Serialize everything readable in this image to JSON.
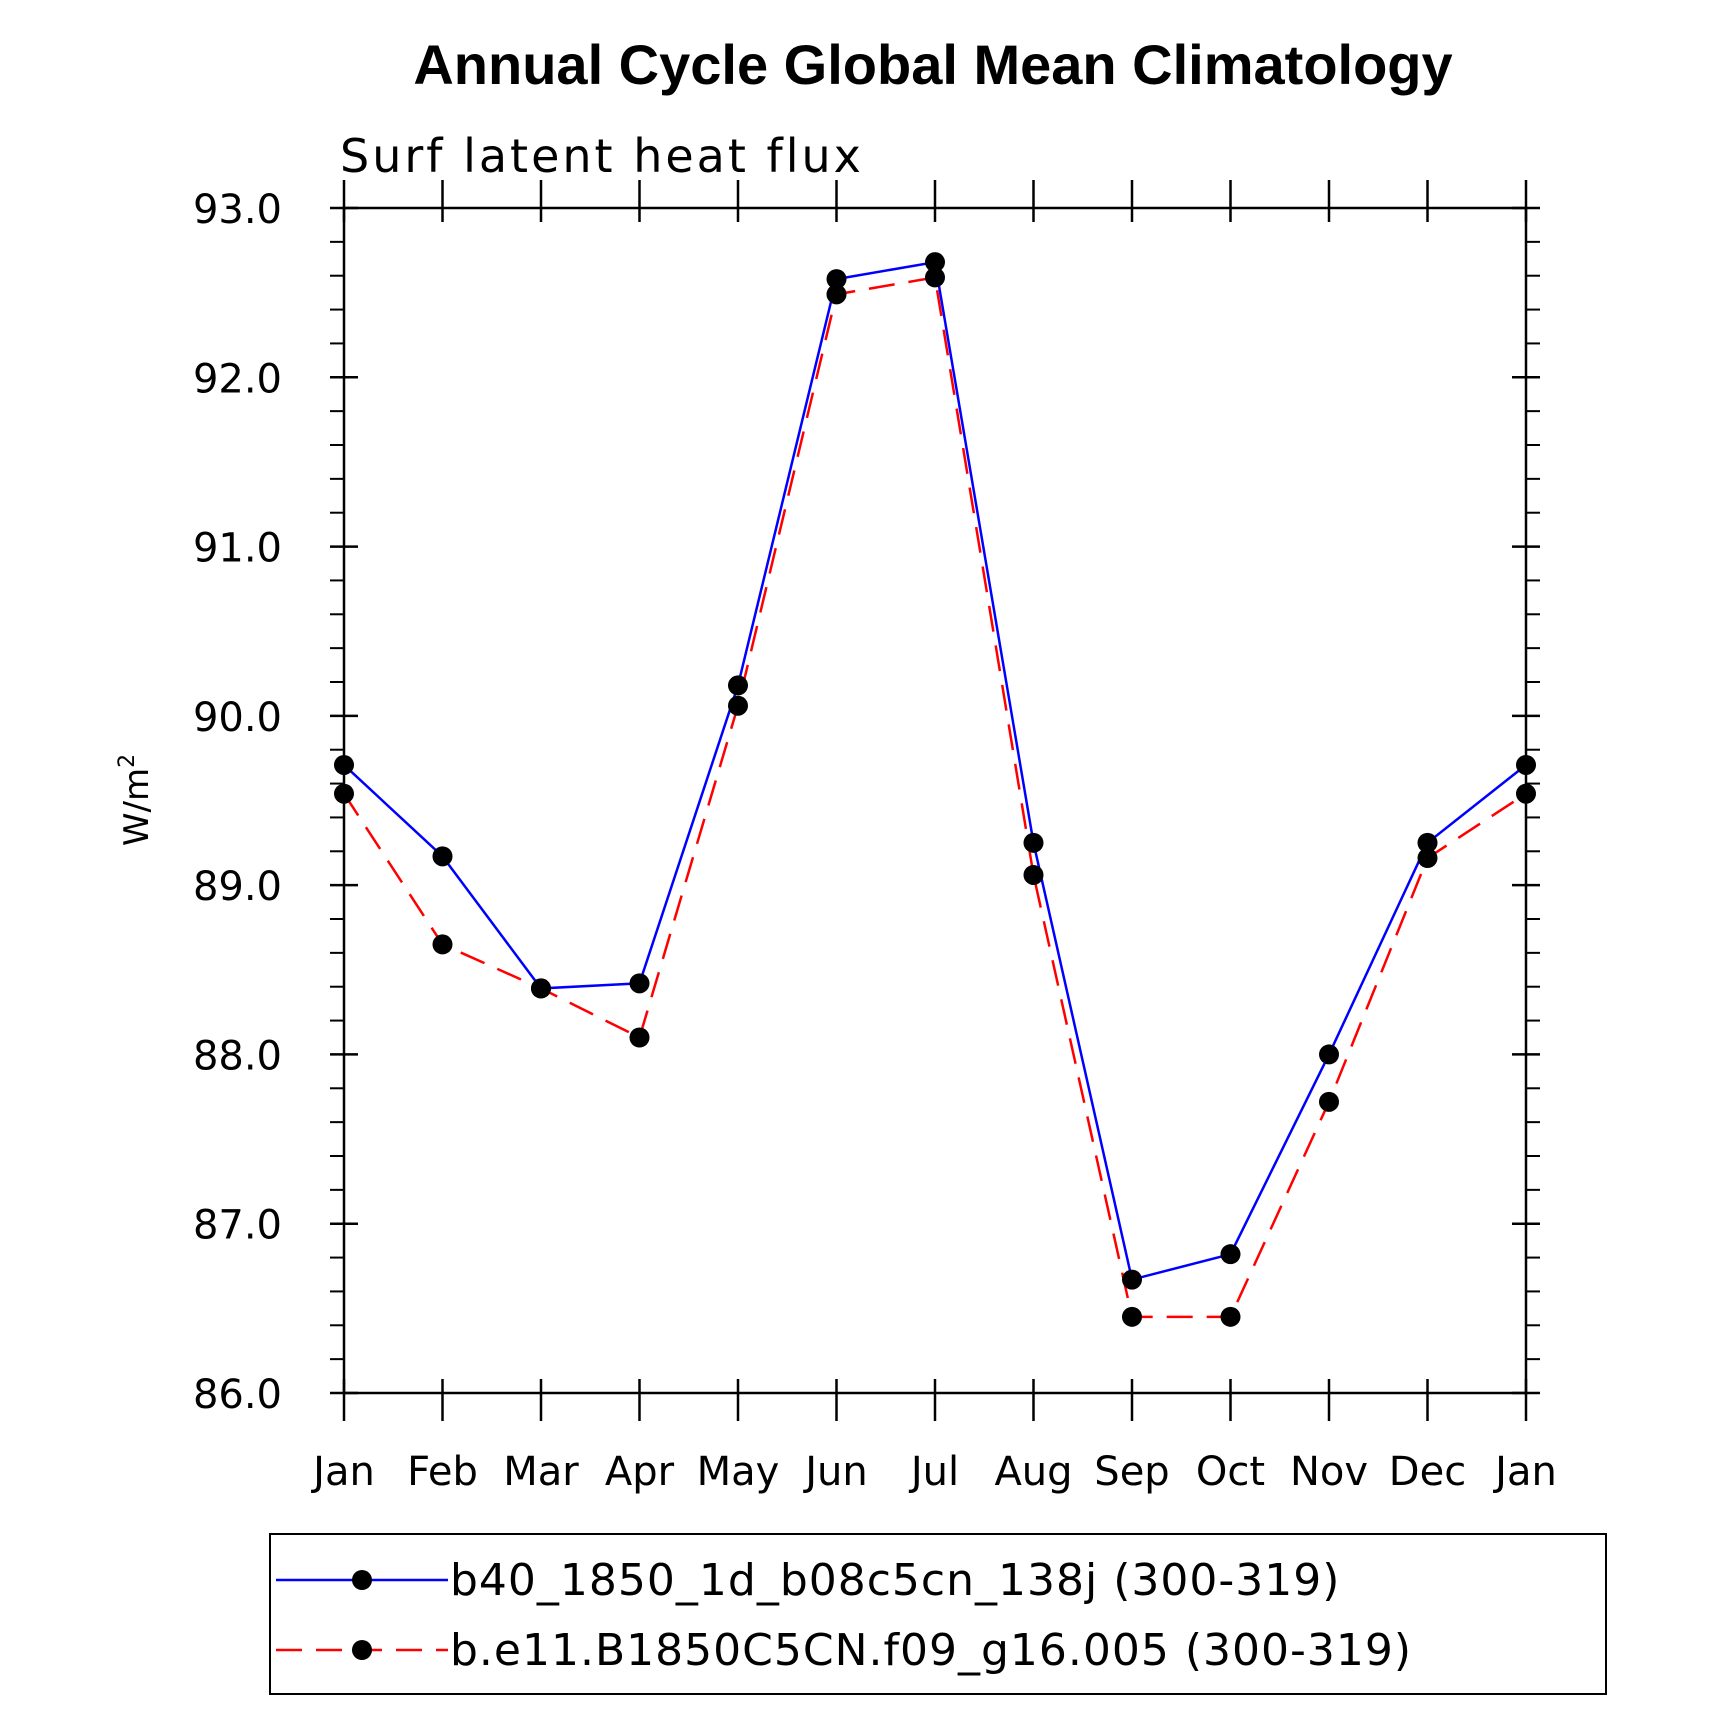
{
  "chart_data": {
    "type": "line",
    "title": "Annual Cycle Global Mean Climatology",
    "subtitle": "Surf latent heat flux",
    "ylabel": "W/m",
    "ylabel_superscript": "2",
    "xlabel": "",
    "ylim": [
      86.0,
      93.0
    ],
    "yticks": [
      "86.0",
      "87.0",
      "88.0",
      "89.0",
      "90.0",
      "91.0",
      "92.0",
      "93.0"
    ],
    "categories": [
      "Jan",
      "Feb",
      "Mar",
      "Apr",
      "May",
      "Jun",
      "Jul",
      "Aug",
      "Sep",
      "Oct",
      "Nov",
      "Dec",
      "Jan"
    ],
    "grid": false,
    "legend_position": "bottom",
    "series": [
      {
        "name": "b40_1850_1d_b08c5cn_138j (300-319)",
        "color": "#0000ff",
        "line_style": "solid",
        "marker": "filled-circle",
        "values": [
          89.71,
          89.17,
          88.39,
          88.42,
          90.18,
          92.58,
          92.68,
          89.25,
          86.67,
          86.82,
          88.0,
          89.25,
          89.71
        ]
      },
      {
        "name": "b.e11.B1850C5CN.f09_g16.005 (300-319)",
        "color": "#ff0000",
        "line_style": "dashed",
        "marker": "filled-circle",
        "values": [
          89.54,
          88.65,
          88.39,
          88.1,
          90.06,
          92.49,
          92.59,
          89.06,
          86.45,
          86.45,
          87.72,
          89.16,
          89.54
        ]
      }
    ]
  }
}
